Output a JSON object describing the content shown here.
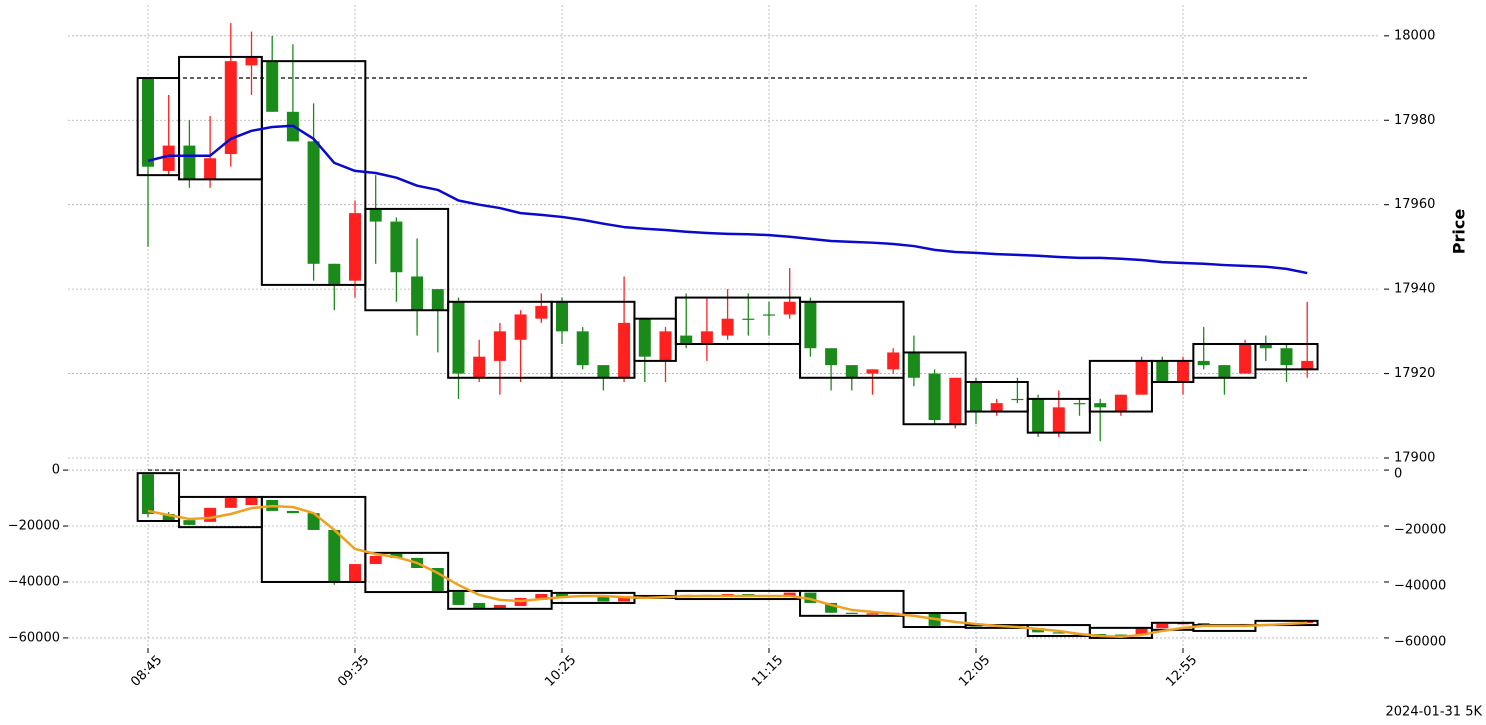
{
  "footer": "2024-01-31 5K",
  "chart_data": [
    {
      "type": "candlestick",
      "ylabel": "Price",
      "up_color": "#ff2020",
      "down_color": "#1a8a1a",
      "ylim": [
        17900,
        18007.3
      ],
      "yticks": [
        17900,
        17920,
        17940,
        17960,
        17980,
        18000
      ],
      "grid": true,
      "hline": 17990,
      "open": [
        17990,
        17968,
        17974,
        17966,
        17972,
        17993,
        17994,
        17982,
        17975,
        17946,
        17942,
        17959,
        17956,
        17943,
        17940,
        17937,
        17919,
        17923,
        17928,
        17933,
        17937,
        17930,
        17922,
        17919,
        17933,
        17923,
        17929,
        17927,
        17929,
        17933,
        17934,
        17934,
        17937,
        17926,
        17922,
        17920,
        17921,
        17925,
        17920,
        17908,
        17918,
        17911,
        17914,
        17914,
        17906,
        17913,
        17913,
        17911,
        17915,
        17923,
        17918,
        17923,
        17922,
        17920,
        17927,
        17926,
        17921
      ],
      "high": [
        17990,
        17986,
        17980,
        17981,
        18003,
        18001,
        18000,
        17998,
        17984,
        17946,
        17961,
        17967,
        17957,
        17952,
        17940,
        17938,
        17928,
        17932,
        17935,
        17939,
        17938,
        17931,
        17922,
        17943,
        17933,
        17931,
        17939,
        17938,
        17940,
        17939,
        17937,
        17945,
        17938,
        17926,
        17922,
        17921,
        17926,
        17929,
        17921,
        17919,
        17919,
        17914,
        17919,
        17915,
        17916,
        17914,
        17914,
        17915,
        17924,
        17924,
        17924,
        17931,
        17922,
        17928,
        17929,
        17927,
        17937
      ],
      "low": [
        17950,
        17967,
        17964,
        17964,
        17969,
        17986,
        17982,
        17975,
        17942,
        17935,
        17938,
        17946,
        17937,
        17929,
        17925,
        17914,
        17918,
        17915,
        17918,
        17932,
        17927,
        17921,
        17916,
        17918,
        17918,
        17918,
        17926,
        17923,
        17928,
        17929,
        17929,
        17933,
        17924,
        17916,
        17916,
        17915,
        17920,
        17917,
        17908,
        17907,
        17908,
        17910,
        17913,
        17905,
        17905,
        17910,
        17904,
        17910,
        17915,
        17918,
        17915,
        17921,
        17915,
        17920,
        17923,
        17918,
        17919
      ],
      "close": [
        17969,
        17974,
        17966,
        17971,
        17994,
        17995,
        17982,
        17975,
        17946,
        17941,
        17958,
        17956,
        17944,
        17935,
        17935,
        17920,
        17924,
        17930,
        17934,
        17936,
        17930,
        17922,
        17919,
        17932,
        17924,
        17930,
        17927,
        17930,
        17933,
        17933,
        17934,
        17937,
        17926,
        17922,
        17919,
        17921,
        17925,
        17919,
        17909,
        17919,
        17911,
        17913,
        17914,
        17906,
        17912,
        17913,
        17912,
        17915,
        17923,
        17918,
        17923,
        17922,
        17919,
        17927,
        17926,
        17922,
        17923
      ],
      "boxes": [
        {
          "start": 0,
          "end": 1,
          "high": 17990,
          "low": 17967
        },
        {
          "start": 2,
          "end": 5,
          "high": 17995,
          "low": 17966
        },
        {
          "start": 6,
          "end": 10,
          "high": 17994,
          "low": 17941
        },
        {
          "start": 11,
          "end": 14,
          "high": 17959,
          "low": 17935
        },
        {
          "start": 15,
          "end": 19,
          "high": 17937,
          "low": 17919
        },
        {
          "start": 20,
          "end": 23,
          "high": 17937,
          "low": 17919
        },
        {
          "start": 24,
          "end": 25,
          "high": 17933,
          "low": 17923
        },
        {
          "start": 26,
          "end": 31,
          "high": 17938,
          "low": 17927
        },
        {
          "start": 32,
          "end": 36,
          "high": 17937,
          "low": 17919
        },
        {
          "start": 37,
          "end": 39,
          "high": 17925,
          "low": 17908
        },
        {
          "start": 40,
          "end": 42,
          "high": 17918,
          "low": 17911
        },
        {
          "start": 43,
          "end": 45,
          "high": 17914,
          "low": 17906
        },
        {
          "start": 46,
          "end": 48,
          "high": 17923,
          "low": 17911
        },
        {
          "start": 49,
          "end": 50,
          "high": 17923,
          "low": 17918
        },
        {
          "start": 51,
          "end": 53,
          "high": 17927,
          "low": 17919
        },
        {
          "start": 54,
          "end": 56,
          "high": 17927,
          "low": 17921
        }
      ],
      "line": {
        "color": "#0a0acc",
        "values": [
          17970.4,
          17971.6,
          17971.6,
          17971.6,
          17975.6,
          17977.5,
          17978.4,
          17978.7,
          17975.6,
          17969.9,
          17968,
          17967.5,
          17966.4,
          17964.5,
          17963.5,
          17961,
          17960,
          17959.2,
          17958,
          17957.6,
          17957.1,
          17956.4,
          17955.5,
          17954.7,
          17954.3,
          17954,
          17953.6,
          17953.3,
          17953.1,
          17953,
          17952.8,
          17952.4,
          17951.9,
          17951.4,
          17951.2,
          17951,
          17950.7,
          17950.2,
          17949.3,
          17948.8,
          17948.6,
          17948.3,
          17948.1,
          17947.9,
          17947.6,
          17947.4,
          17947.4,
          17947.2,
          17946.9,
          17946.4,
          17946.2,
          17946,
          17945.7,
          17945.5,
          17945.3,
          17944.8,
          17943.8
        ]
      }
    },
    {
      "type": "candlestick",
      "up_color": "#ff2020",
      "down_color": "#1a8a1a",
      "categories": [
        "08:45",
        null,
        null,
        null,
        null,
        null,
        null,
        null,
        null,
        null,
        "09:35",
        null,
        null,
        null,
        null,
        null,
        null,
        null,
        null,
        null,
        "10:25",
        null,
        null,
        null,
        null,
        null,
        null,
        null,
        null,
        null,
        "11:15",
        null,
        null,
        null,
        null,
        null,
        null,
        null,
        null,
        null,
        "12:05",
        null,
        null,
        null,
        null,
        null,
        null,
        null,
        null,
        null,
        "12:55",
        null,
        null,
        null,
        null,
        null,
        null
      ],
      "ylim": [
        -63600,
        3600
      ],
      "yticks": [
        {
          "value": -60000,
          "label": "−60000"
        },
        {
          "value": -40000,
          "label": "−40000"
        },
        {
          "value": -20000,
          "label": "−20000"
        },
        0
      ],
      "grid": true,
      "hline": 0,
      "open": [
        -1500,
        -15700,
        -17900,
        -18500,
        -13500,
        -12500,
        -10700,
        -14600,
        -15400,
        -21400,
        -40000,
        -33600,
        -30000,
        -31400,
        -35000,
        -43600,
        -47500,
        -49300,
        -48600,
        -46400,
        -44300,
        -44800,
        -45400,
        -47000,
        -45000,
        -45300,
        -45500,
        -44600,
        -45000,
        -44300,
        -44700,
        -45000,
        -43800,
        -47500,
        -51000,
        -51400,
        -51200,
        -51000,
        -51300,
        -55700,
        -55900,
        -56100,
        -56300,
        -56500,
        -58000,
        -58400,
        -58600,
        -58800,
        -59000,
        -56500,
        -55000,
        -54700,
        -55400,
        -55800,
        -55000,
        -55300,
        -54700
      ],
      "high": [
        -1500,
        -15000,
        -17900,
        -13500,
        -10000,
        -9700,
        -10700,
        -14600,
        -15400,
        -21400,
        -33600,
        -30700,
        -30000,
        -31400,
        -35000,
        -43600,
        -47500,
        -48200,
        -45700,
        -44300,
        -44300,
        -44800,
        -45400,
        -45000,
        -45000,
        -45300,
        -44600,
        -44600,
        -44300,
        -44300,
        -44700,
        -43800,
        -43800,
        -47500,
        -51000,
        -51200,
        -51000,
        -51000,
        -51300,
        -55700,
        -55900,
        -56100,
        -56300,
        -56500,
        -58000,
        -58400,
        -58600,
        -58800,
        -56500,
        -55000,
        -54700,
        -54700,
        -55400,
        -55000,
        -55000,
        -54700,
        -54000
      ],
      "low": [
        -16800,
        -18000,
        -19600,
        -18500,
        -13500,
        -12500,
        -14600,
        -15400,
        -21400,
        -41000,
        -40000,
        -33600,
        -31400,
        -35000,
        -43600,
        -48200,
        -49300,
        -49300,
        -48600,
        -46400,
        -45700,
        -45400,
        -47000,
        -47000,
        -45300,
        -45500,
        -45500,
        -45000,
        -45000,
        -44700,
        -45000,
        -45000,
        -47500,
        -51000,
        -51400,
        -51400,
        -51200,
        -51300,
        -55700,
        -55900,
        -56100,
        -56300,
        -56500,
        -58000,
        -58400,
        -58600,
        -58800,
        -59000,
        -59000,
        -56500,
        -55000,
        -55400,
        -55800,
        -55800,
        -55300,
        -55300,
        -54700
      ],
      "close": [
        -15700,
        -17900,
        -19600,
        -13500,
        -10000,
        -9700,
        -14600,
        -15400,
        -21400,
        -40000,
        -33600,
        -30700,
        -31400,
        -35000,
        -43600,
        -48200,
        -49300,
        -48200,
        -45700,
        -44300,
        -45700,
        -45400,
        -47000,
        -45000,
        -45300,
        -45500,
        -44600,
        -45000,
        -44300,
        -44700,
        -45000,
        -43800,
        -47500,
        -51000,
        -51400,
        -51200,
        -51000,
        -51300,
        -55700,
        -55900,
        -56100,
        -56300,
        -56500,
        -58000,
        -58400,
        -58600,
        -58800,
        -59000,
        -56500,
        -55000,
        -54700,
        -55400,
        -55800,
        -55000,
        -55300,
        -54700,
        -54000
      ],
      "boxes": [
        {
          "start": 0,
          "end": 1,
          "high": -1100,
          "low": -18200
        },
        {
          "start": 2,
          "end": 5,
          "high": -9600,
          "low": -20400
        },
        {
          "start": 6,
          "end": 10,
          "high": -9600,
          "low": -40000
        },
        {
          "start": 11,
          "end": 14,
          "high": -29600,
          "low": -43600
        },
        {
          "start": 15,
          "end": 19,
          "high": -43200,
          "low": -49600
        },
        {
          "start": 20,
          "end": 23,
          "high": -43900,
          "low": -47500
        },
        {
          "start": 24,
          "end": 25,
          "high": -45000,
          "low": -45700
        },
        {
          "start": 26,
          "end": 31,
          "high": -43200,
          "low": -46100
        },
        {
          "start": 32,
          "end": 36,
          "high": -43200,
          "low": -52100
        },
        {
          "start": 37,
          "end": 39,
          "high": -51100,
          "low": -56100
        },
        {
          "start": 40,
          "end": 42,
          "high": -55400,
          "low": -56400
        },
        {
          "start": 43,
          "end": 45,
          "high": -55400,
          "low": -59300
        },
        {
          "start": 46,
          "end": 48,
          "high": -56400,
          "low": -60000
        },
        {
          "start": 49,
          "end": 50,
          "high": -54600,
          "low": -57100
        },
        {
          "start": 51,
          "end": 53,
          "high": -55400,
          "low": -57500
        },
        {
          "start": 54,
          "end": 56,
          "high": -53900,
          "low": -55400
        }
      ],
      "line": {
        "color": "#f0a020",
        "values": [
          -14600,
          -16100,
          -17500,
          -17100,
          -15700,
          -13600,
          -12900,
          -13200,
          -15400,
          -21400,
          -28200,
          -30000,
          -31100,
          -33200,
          -36800,
          -41100,
          -44600,
          -46400,
          -46800,
          -46100,
          -45400,
          -45000,
          -45000,
          -45400,
          -45700,
          -45400,
          -45000,
          -45000,
          -45000,
          -45000,
          -45000,
          -45000,
          -46100,
          -48200,
          -50000,
          -50700,
          -51400,
          -52100,
          -53200,
          -54300,
          -55000,
          -55700,
          -56100,
          -56800,
          -57500,
          -58600,
          -59300,
          -59600,
          -58900,
          -57500,
          -56400,
          -55700,
          -55700,
          -55700,
          -55400,
          -55000,
          -54600
        ]
      }
    }
  ]
}
